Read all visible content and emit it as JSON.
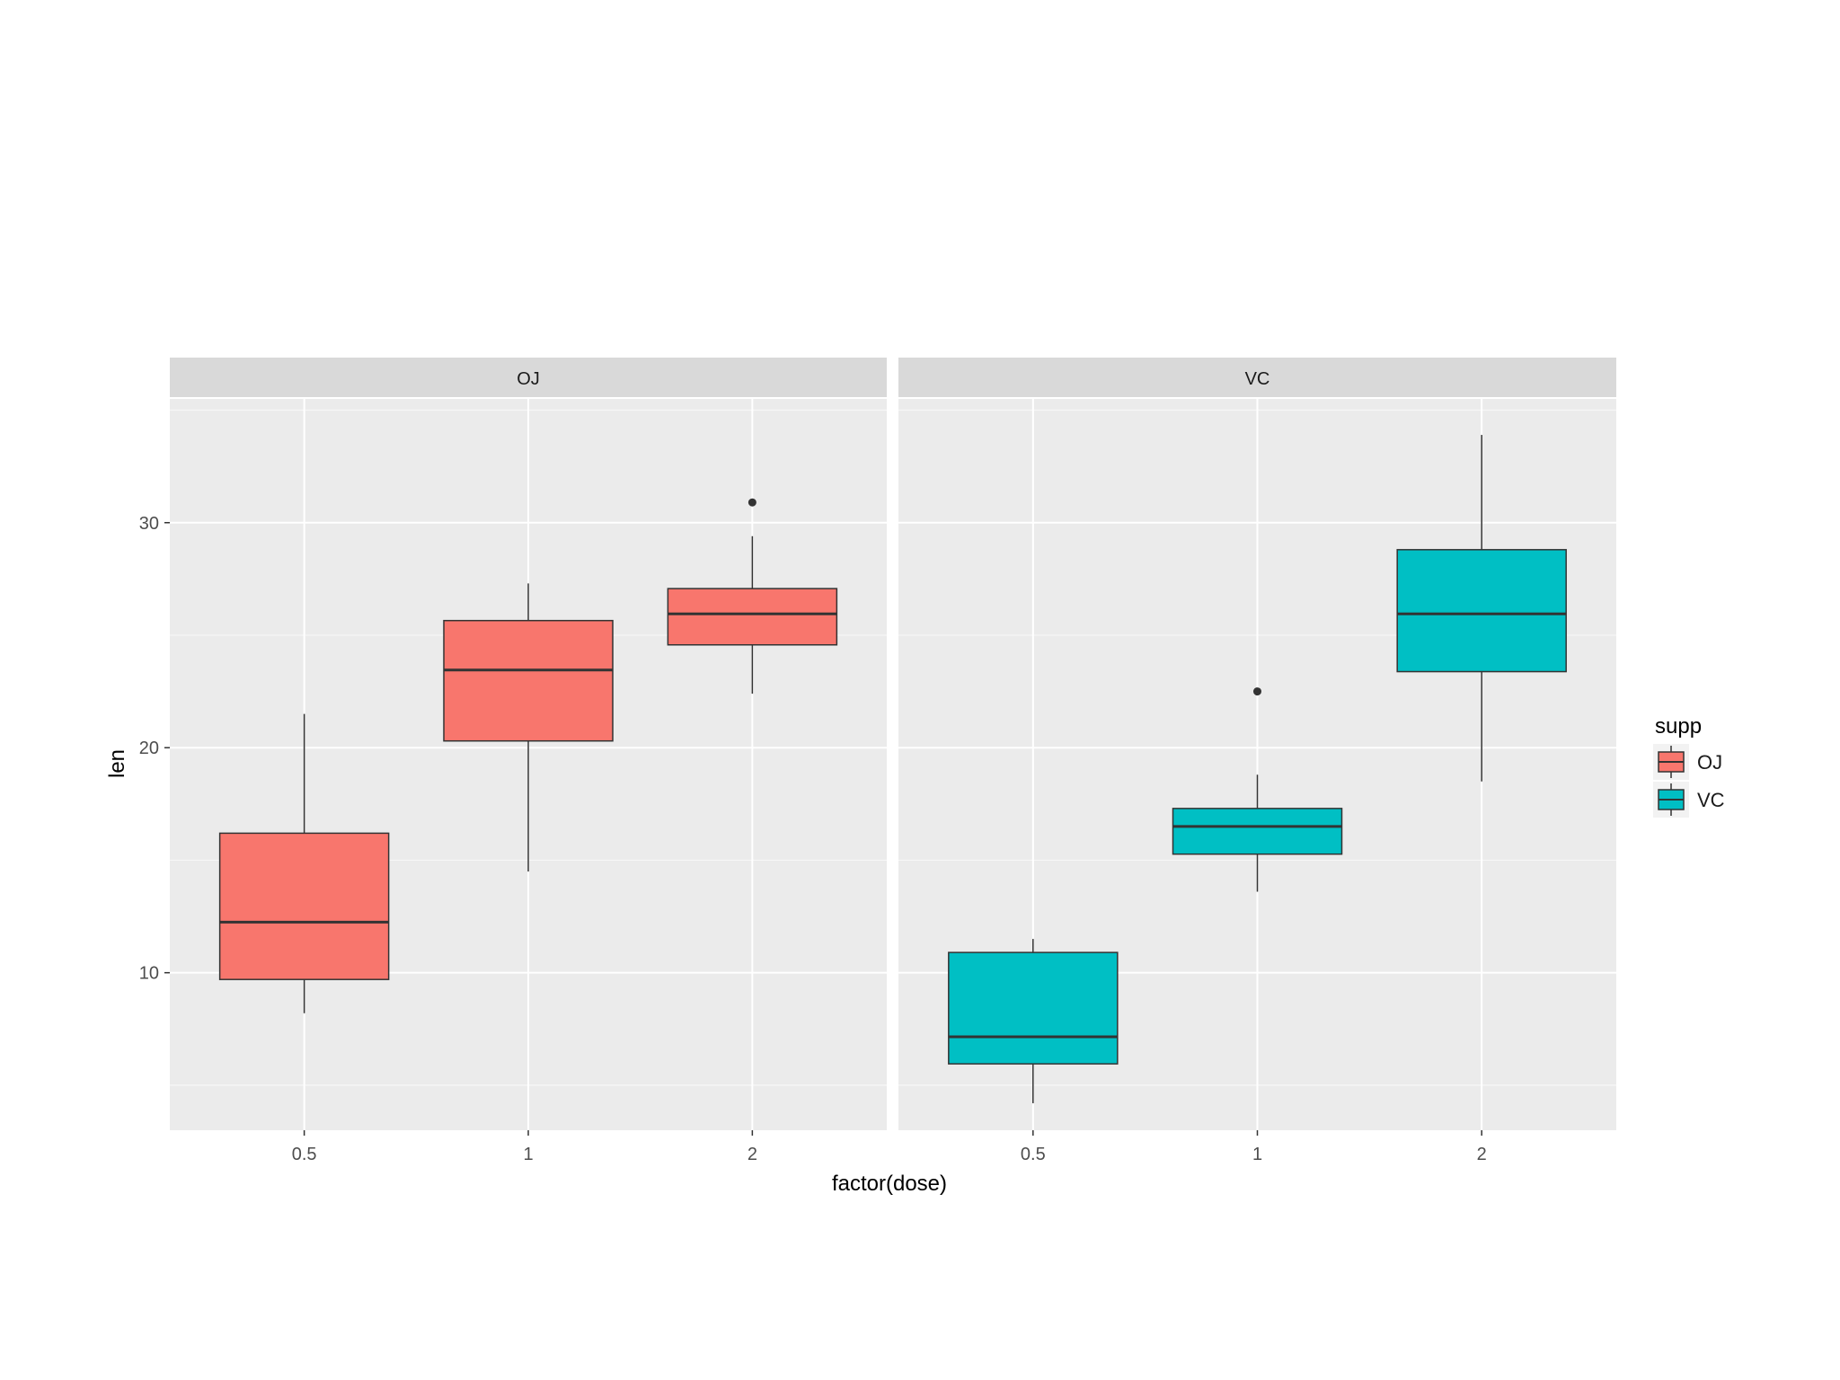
{
  "chart_data": {
    "type": "boxplot",
    "facets": [
      "OJ",
      "VC"
    ],
    "categories": [
      "0.5",
      "1",
      "2"
    ],
    "xlabel": "factor(dose)",
    "ylabel": "len",
    "ylim": [
      3,
      35.5
    ],
    "yticks": [
      10,
      20,
      30
    ],
    "grid": "on",
    "legend": {
      "title": "supp",
      "placement": "right",
      "entries": [
        "OJ",
        "VC"
      ]
    },
    "series": [
      {
        "name": "OJ",
        "color": "#F8766D",
        "boxes": [
          {
            "category": "0.5",
            "ymin": 8.2,
            "q1": 9.7,
            "median": 12.25,
            "q3": 16.2,
            "ymax": 21.5,
            "outliers": []
          },
          {
            "category": "1",
            "ymin": 14.5,
            "q1": 20.3,
            "median": 23.45,
            "q3": 25.65,
            "ymax": 27.3,
            "outliers": []
          },
          {
            "category": "2",
            "ymin": 22.4,
            "q1": 24.57,
            "median": 25.95,
            "q3": 27.07,
            "ymax": 29.4,
            "outliers": [
              30.9
            ]
          }
        ]
      },
      {
        "name": "VC",
        "color": "#00BFC4",
        "boxes": [
          {
            "category": "0.5",
            "ymin": 4.2,
            "q1": 5.95,
            "median": 7.15,
            "q3": 10.9,
            "ymax": 11.5,
            "outliers": []
          },
          {
            "category": "1",
            "ymin": 13.6,
            "q1": 15.27,
            "median": 16.5,
            "q3": 17.3,
            "ymax": 18.8,
            "outliers": [
              22.5
            ]
          },
          {
            "category": "2",
            "ymin": 18.5,
            "q1": 23.38,
            "median": 25.95,
            "q3": 28.8,
            "ymax": 33.9,
            "outliers": []
          }
        ]
      }
    ]
  }
}
